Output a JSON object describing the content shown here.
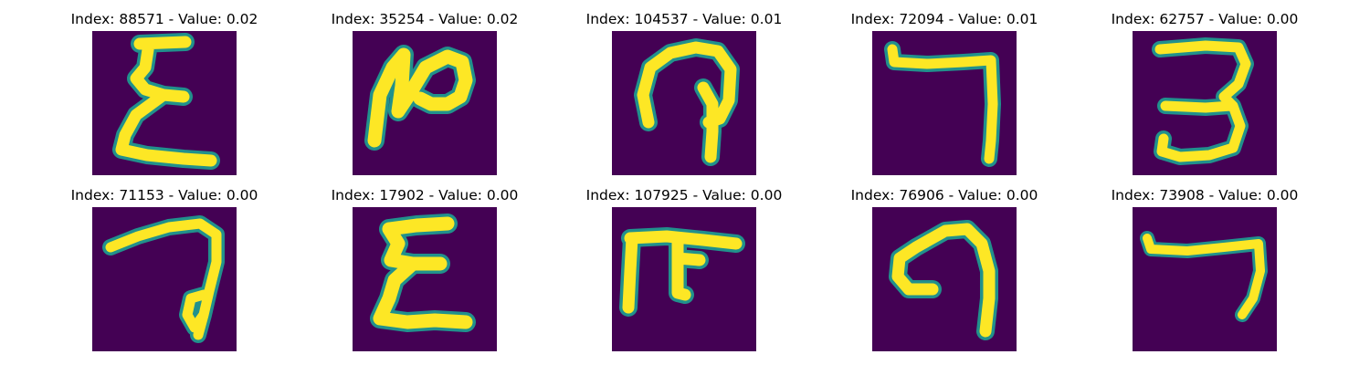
{
  "panels": [
    {
      "title": "Index: 88571 - Value: 0.02",
      "glyph": "zigzag-epsilon-glyph"
    },
    {
      "title": "Index: 35254 - Value: 0.02",
      "glyph": "n-curl-glyph"
    },
    {
      "title": "Index: 104537 - Value: 0.01",
      "glyph": "loop-hook-glyph"
    },
    {
      "title": "Index: 72094 - Value: 0.01",
      "glyph": "seven-hook-glyph"
    },
    {
      "title": "Index: 62757 - Value: 0.00",
      "glyph": "three-glyph"
    },
    {
      "title": "Index: 71153 - Value: 0.00",
      "glyph": "looped-seven-glyph"
    },
    {
      "title": "Index: 17902 - Value: 0.00",
      "glyph": "epsilon-glyph"
    },
    {
      "title": "Index: 107925 - Value: 0.00",
      "glyph": "fork-glyph"
    },
    {
      "title": "Index: 76906 - Value: 0.00",
      "glyph": "curl-arch-glyph"
    },
    {
      "title": "Index: 73908 - Value: 0.00",
      "glyph": "seven-glyph"
    }
  ],
  "colors": {
    "background": "#440154",
    "stroke": "#fde725",
    "edge": "#21918c"
  }
}
